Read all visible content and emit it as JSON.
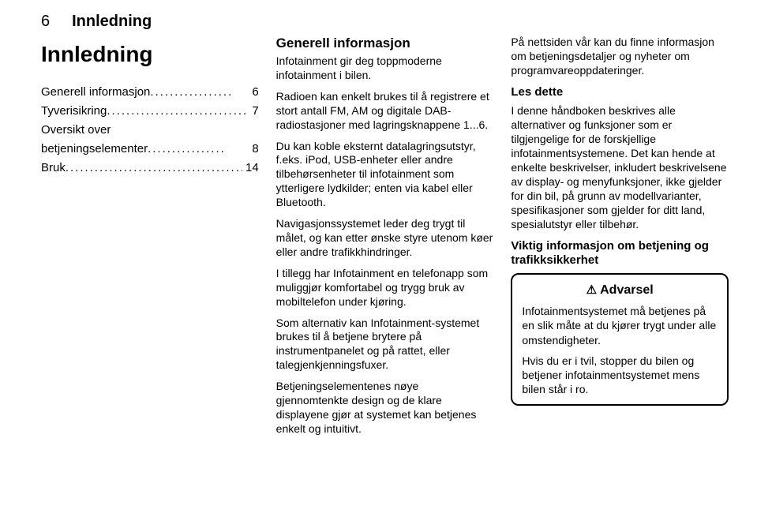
{
  "page": {
    "number": "6",
    "running_title": "Innledning"
  },
  "heading": "Innledning",
  "toc": [
    {
      "label": "Generell informasjon",
      "dots": ".................",
      "page": "6"
    },
    {
      "label": "Tyverisikring",
      "dots": ".............................",
      "page": "7"
    },
    {
      "label_a": "Oversikt over",
      "label_b": "betjeningselementer",
      "dots": "................",
      "page": "8"
    },
    {
      "label": "Bruk",
      "dots": ".........................................",
      "page": "14"
    }
  ],
  "col2": {
    "heading": "Generell informasjon",
    "p1": "Infotainment gir deg toppmoderne infotainment i bilen.",
    "p2": "Radioen kan enkelt brukes til å registrere et stort antall FM, AM og digitale DAB-radiostasjoner med lagringsknappene 1...6.",
    "p3": "Du kan koble eksternt datalagringsutstyr, f.eks. iPod, USB-enheter eller andre tilbehørsenheter til infotainment som ytterligere lydkilder; enten via kabel eller Bluetooth.",
    "p4": "Navigasjonssystemet leder deg trygt til målet, og kan etter ønske styre utenom køer eller andre trafikkhindringer.",
    "p5": "I tillegg har Infotainment en telefonapp som muliggjør komfortabel og trygg bruk av mobiltelefon under kjøring.",
    "p6": "Som alternativ kan Infotainment-systemet brukes til å betjene brytere på instrumentpanelet og på rattet, eller talegjenkjenningsfuxer.",
    "p7": "Betjeningselementenes nøye gjennomtenkte design og de klare displayene gjør at systemet kan betjenes enkelt og intuitivt."
  },
  "col3": {
    "p1": "På nettsiden vår kan du finne informasjon om betjeningsdetaljer og nyheter om programvareoppdateringer.",
    "sub1": "Les dette",
    "p2": "I denne håndboken beskrives alle alternativer og funksjoner som er tilgjengelige for de forskjellige infotainmentsystemene. Det kan hende at enkelte beskrivelser, inkludert beskrivelsene av display- og menyfunksjoner, ikke gjelder for din bil, på grunn av modellvarianter, spesifikasjoner som gjelder for ditt land, spesialutstyr eller tilbehør.",
    "sub2": "Viktig informasjon om betjening og trafikksikkerhet",
    "warning": {
      "title": "Advarsel",
      "p1": "Infotainmentsystemet må betjenes på en slik måte at du kjører trygt under alle omstendigheter.",
      "p2": "Hvis du er i tvil, stopper du bilen og betjener infotainmentsystemet mens bilen står i ro."
    }
  }
}
